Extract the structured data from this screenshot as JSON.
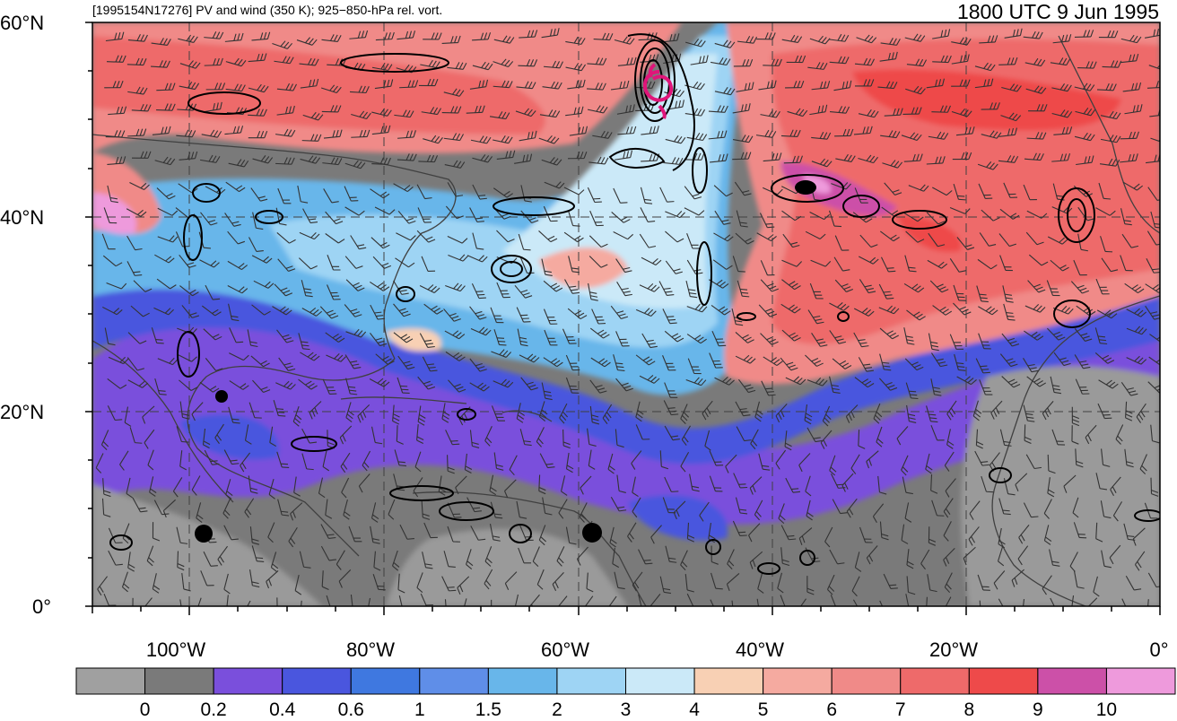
{
  "header": {
    "left_title": "[1995154N17276] PV and wind (350 K); 925−850-hPa rel. vort.",
    "right_title": "1800 UTC 9 Jun 1995"
  },
  "axes": {
    "lat_labels": [
      "60°N",
      "40°N",
      "20°N",
      "0°"
    ],
    "lon_labels": [
      "100°W",
      "80°W",
      "60°W",
      "40°W",
      "20°W",
      "0°"
    ]
  },
  "colorbar": {
    "levels": [
      "0",
      "0.2",
      "0.4",
      "0.6",
      "1",
      "1.5",
      "2",
      "3",
      "4",
      "5",
      "6",
      "7",
      "8",
      "9",
      "10"
    ],
    "colors": [
      "#a0a0a0",
      "#7a7a7a",
      "#7a4fdc",
      "#4a56de",
      "#3f78e0",
      "#5f8ee8",
      "#68b6ea",
      "#9ed4f4",
      "#cbe9f8",
      "#f8d0b4",
      "#f5aaa0",
      "#f08a88",
      "#ee6a6a",
      "#ee4a4a",
      "#cc50a8",
      "#ee9adc"
    ]
  },
  "map_colors": {
    "ocean_low": "#7a7a7a",
    "land": "#9a9a9a",
    "low_pv": "#7a4fdc",
    "mid_pv": "#4a56de",
    "band_blue": "#3f78e0",
    "light_blue": "#9ed4f4",
    "pale_blue": "#cbe9f8",
    "high_pv": "#ee6a6a",
    "very_high": "#ee4a4a",
    "magenta": "#cc50a8",
    "pink": "#ee9adc",
    "contour": "#000000",
    "barb": "#333333",
    "track": "#e0157a"
  }
}
